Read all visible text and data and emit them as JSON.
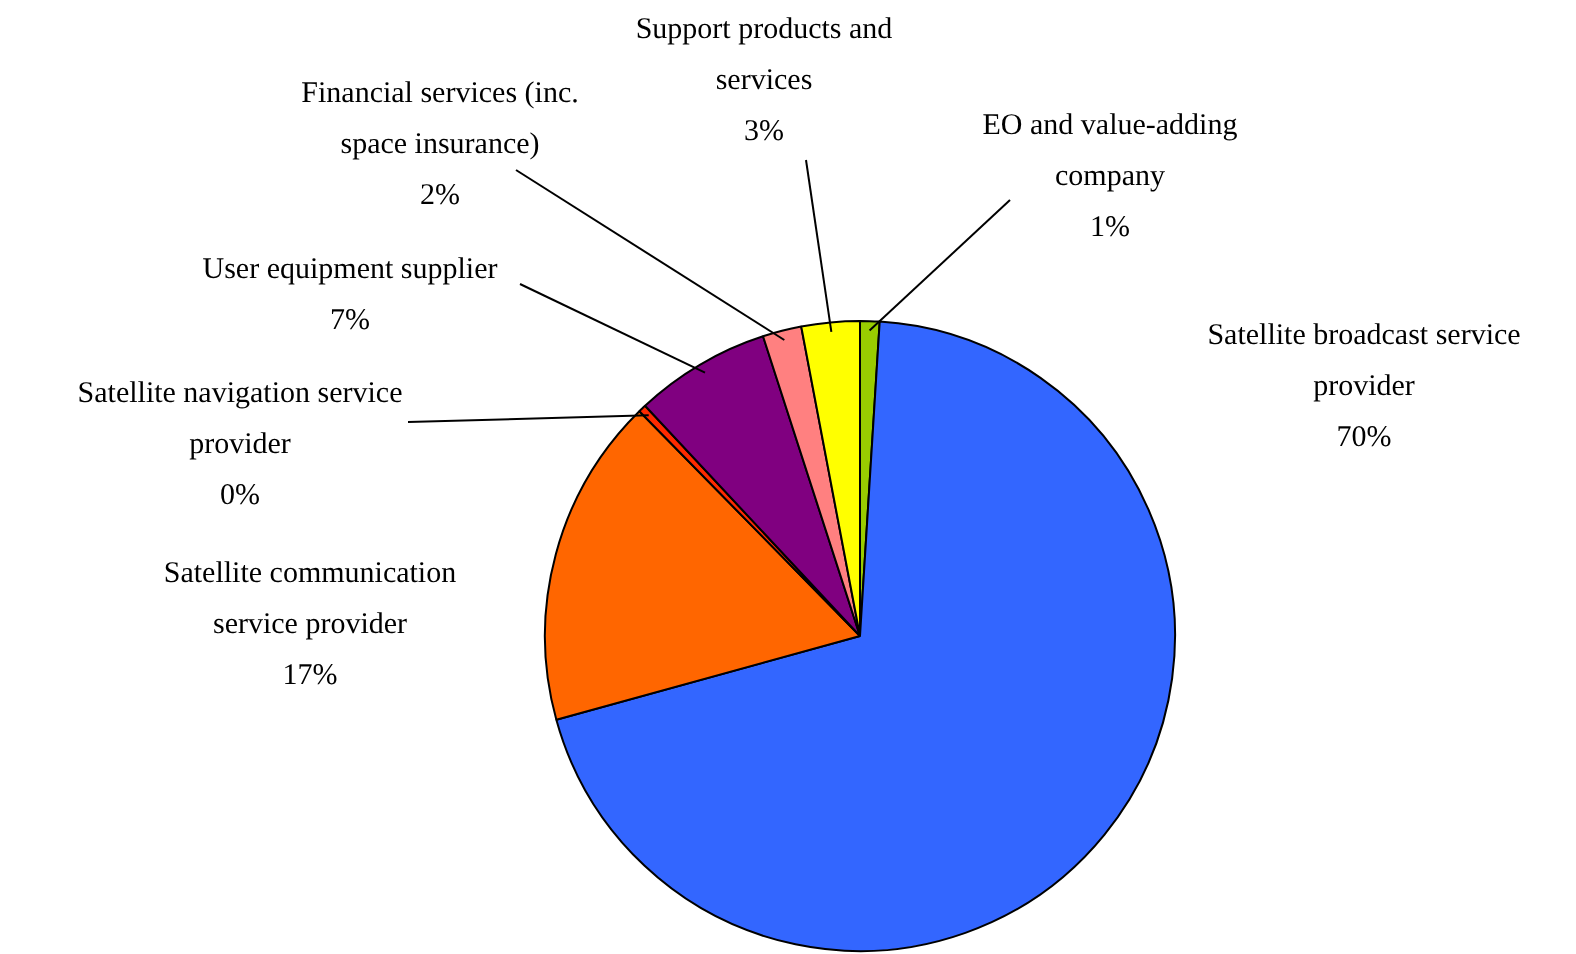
{
  "chart_data": {
    "type": "pie",
    "categories": [
      "EO and value-adding company",
      "Satellite broadcast service provider",
      "Satellite communication service provider",
      "Satellite navigation service provider",
      "User equipment supplier",
      "Financial services (inc. space insurance)",
      "Support products and services"
    ],
    "values": [
      1,
      70,
      17,
      0.4,
      7,
      2,
      3
    ],
    "value_labels": [
      "1%",
      "70%",
      "17%",
      "0%",
      "7%",
      "2%",
      "3%"
    ],
    "colors": [
      "#99cc00",
      "#3366ff",
      "#ff6600",
      "#ff2a00",
      "#800080",
      "#ff8080",
      "#ffff00"
    ],
    "legend": false
  }
}
